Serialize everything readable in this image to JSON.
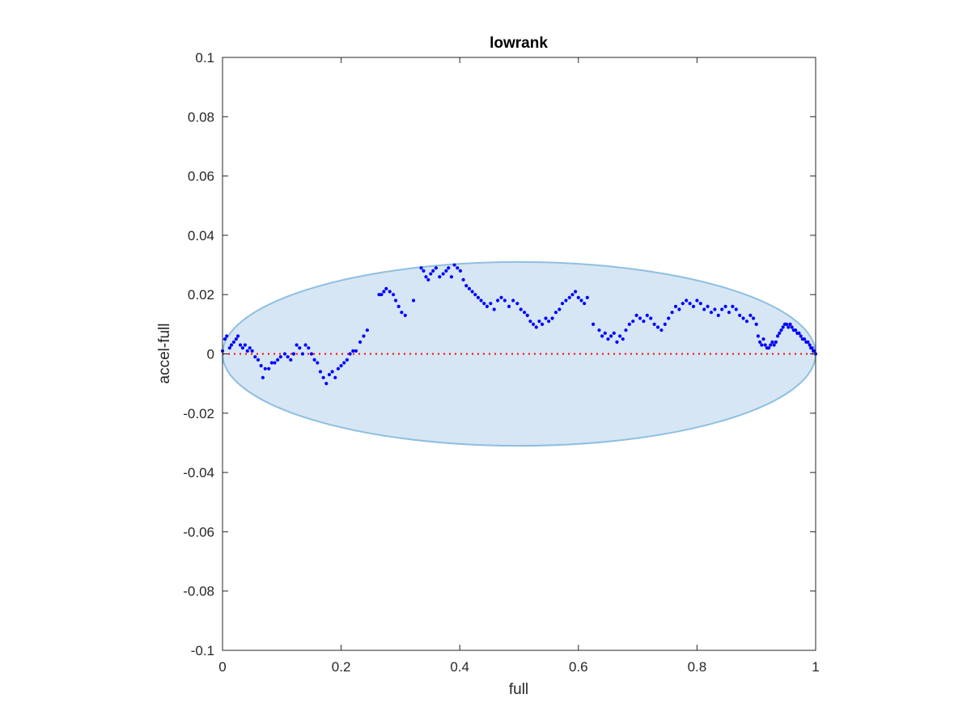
{
  "chart_data": {
    "type": "scatter",
    "title": "lowrank",
    "xlabel": "full",
    "ylabel": "accel-full",
    "xlim": [
      0,
      1
    ],
    "ylim": [
      -0.1,
      0.1
    ],
    "xticks": [
      "0",
      "0.2",
      "0.4",
      "0.6",
      "0.8",
      "1"
    ],
    "yticks": [
      "-0.1",
      "-0.08",
      "-0.06",
      "-0.04",
      "-0.02",
      "0",
      "0.02",
      "0.04",
      "0.06",
      "0.08",
      "0.1"
    ],
    "grid": false,
    "reference_line": {
      "y": 0,
      "style": "dotted",
      "color": "#ff0000"
    },
    "ellipse": {
      "center": [
        0.5,
        0
      ],
      "semi_axis_x": 0.5,
      "semi_axis_y": 0.031,
      "fill": "#d6e6f4",
      "stroke": "#8fbfe0"
    },
    "marker_color": "#0000ff",
    "points": [
      [
        0.0,
        0.001
      ],
      [
        0.004,
        0.005
      ],
      [
        0.007,
        0.006
      ],
      [
        0.012,
        0.002
      ],
      [
        0.015,
        0.003
      ],
      [
        0.019,
        0.004
      ],
      [
        0.023,
        0.005
      ],
      [
        0.026,
        0.006
      ],
      [
        0.03,
        0.003
      ],
      [
        0.034,
        0.002
      ],
      [
        0.038,
        0.003
      ],
      [
        0.042,
        0.001
      ],
      [
        0.046,
        0.002
      ],
      [
        0.05,
        0.001
      ],
      [
        0.055,
        -0.001
      ],
      [
        0.06,
        -0.002
      ],
      [
        0.065,
        -0.004
      ],
      [
        0.068,
        -0.008
      ],
      [
        0.072,
        -0.005
      ],
      [
        0.078,
        -0.005
      ],
      [
        0.083,
        -0.003
      ],
      [
        0.088,
        -0.003
      ],
      [
        0.093,
        -0.002
      ],
      [
        0.098,
        -0.001
      ],
      [
        0.105,
        0.0
      ],
      [
        0.11,
        -0.001
      ],
      [
        0.115,
        -0.002
      ],
      [
        0.12,
        0.0
      ],
      [
        0.125,
        0.003
      ],
      [
        0.13,
        0.002
      ],
      [
        0.135,
        0.0
      ],
      [
        0.14,
        0.003
      ],
      [
        0.145,
        0.002
      ],
      [
        0.15,
        0.0
      ],
      [
        0.155,
        -0.002
      ],
      [
        0.16,
        -0.003
      ],
      [
        0.165,
        -0.006
      ],
      [
        0.17,
        -0.008
      ],
      [
        0.175,
        -0.01
      ],
      [
        0.18,
        -0.007
      ],
      [
        0.185,
        -0.006
      ],
      [
        0.19,
        -0.008
      ],
      [
        0.195,
        -0.005
      ],
      [
        0.2,
        -0.004
      ],
      [
        0.205,
        -0.003
      ],
      [
        0.21,
        -0.002
      ],
      [
        0.215,
        0.0
      ],
      [
        0.22,
        0.001
      ],
      [
        0.225,
        0.001
      ],
      [
        0.232,
        0.004
      ],
      [
        0.238,
        0.006
      ],
      [
        0.244,
        0.008
      ],
      [
        0.264,
        0.02
      ],
      [
        0.268,
        0.02
      ],
      [
        0.272,
        0.021
      ],
      [
        0.276,
        0.022
      ],
      [
        0.282,
        0.021
      ],
      [
        0.288,
        0.02
      ],
      [
        0.292,
        0.018
      ],
      [
        0.297,
        0.016
      ],
      [
        0.302,
        0.014
      ],
      [
        0.308,
        0.013
      ],
      [
        0.322,
        0.018
      ],
      [
        0.335,
        0.029
      ],
      [
        0.339,
        0.028
      ],
      [
        0.343,
        0.026
      ],
      [
        0.347,
        0.025
      ],
      [
        0.351,
        0.027
      ],
      [
        0.355,
        0.028
      ],
      [
        0.36,
        0.029
      ],
      [
        0.366,
        0.026
      ],
      [
        0.372,
        0.027
      ],
      [
        0.377,
        0.028
      ],
      [
        0.381,
        0.029
      ],
      [
        0.386,
        0.026
      ],
      [
        0.391,
        0.03
      ],
      [
        0.396,
        0.029
      ],
      [
        0.401,
        0.028
      ],
      [
        0.406,
        0.025
      ],
      [
        0.411,
        0.023
      ],
      [
        0.416,
        0.022
      ],
      [
        0.421,
        0.021
      ],
      [
        0.426,
        0.02
      ],
      [
        0.431,
        0.019
      ],
      [
        0.436,
        0.018
      ],
      [
        0.441,
        0.017
      ],
      [
        0.446,
        0.016
      ],
      [
        0.452,
        0.017
      ],
      [
        0.458,
        0.015
      ],
      [
        0.464,
        0.018
      ],
      [
        0.47,
        0.019
      ],
      [
        0.476,
        0.018
      ],
      [
        0.483,
        0.016
      ],
      [
        0.49,
        0.018
      ],
      [
        0.497,
        0.017
      ],
      [
        0.503,
        0.015
      ],
      [
        0.509,
        0.014
      ],
      [
        0.514,
        0.013
      ],
      [
        0.519,
        0.011
      ],
      [
        0.524,
        0.01
      ],
      [
        0.529,
        0.009
      ],
      [
        0.534,
        0.011
      ],
      [
        0.539,
        0.01
      ],
      [
        0.545,
        0.012
      ],
      [
        0.55,
        0.011
      ],
      [
        0.556,
        0.012
      ],
      [
        0.562,
        0.014
      ],
      [
        0.568,
        0.015
      ],
      [
        0.573,
        0.017
      ],
      [
        0.579,
        0.018
      ],
      [
        0.585,
        0.019
      ],
      [
        0.59,
        0.02
      ],
      [
        0.595,
        0.021
      ],
      [
        0.6,
        0.019
      ],
      [
        0.605,
        0.018
      ],
      [
        0.61,
        0.017
      ],
      [
        0.615,
        0.019
      ],
      [
        0.625,
        0.01
      ],
      [
        0.635,
        0.008
      ],
      [
        0.64,
        0.006
      ],
      [
        0.645,
        0.007
      ],
      [
        0.65,
        0.005
      ],
      [
        0.655,
        0.006
      ],
      [
        0.66,
        0.007
      ],
      [
        0.665,
        0.004
      ],
      [
        0.67,
        0.006
      ],
      [
        0.675,
        0.005
      ],
      [
        0.68,
        0.008
      ],
      [
        0.686,
        0.01
      ],
      [
        0.692,
        0.011
      ],
      [
        0.698,
        0.013
      ],
      [
        0.704,
        0.012
      ],
      [
        0.71,
        0.011
      ],
      [
        0.716,
        0.013
      ],
      [
        0.722,
        0.012
      ],
      [
        0.728,
        0.01
      ],
      [
        0.734,
        0.009
      ],
      [
        0.74,
        0.008
      ],
      [
        0.746,
        0.01
      ],
      [
        0.752,
        0.012
      ],
      [
        0.758,
        0.014
      ],
      [
        0.764,
        0.016
      ],
      [
        0.77,
        0.015
      ],
      [
        0.776,
        0.017
      ],
      [
        0.782,
        0.018
      ],
      [
        0.788,
        0.017
      ],
      [
        0.794,
        0.016
      ],
      [
        0.8,
        0.018
      ],
      [
        0.806,
        0.017
      ],
      [
        0.812,
        0.015
      ],
      [
        0.818,
        0.016
      ],
      [
        0.824,
        0.014
      ],
      [
        0.83,
        0.015
      ],
      [
        0.836,
        0.013
      ],
      [
        0.842,
        0.015
      ],
      [
        0.848,
        0.016
      ],
      [
        0.854,
        0.014
      ],
      [
        0.86,
        0.016
      ],
      [
        0.866,
        0.015
      ],
      [
        0.872,
        0.013
      ],
      [
        0.878,
        0.012
      ],
      [
        0.884,
        0.011
      ],
      [
        0.89,
        0.013
      ],
      [
        0.895,
        0.012
      ],
      [
        0.9,
        0.01
      ],
      [
        0.903,
        0.006
      ],
      [
        0.906,
        0.004
      ],
      [
        0.909,
        0.003
      ],
      [
        0.912,
        0.005
      ],
      [
        0.915,
        0.003
      ],
      [
        0.918,
        0.002
      ],
      [
        0.921,
        0.002
      ],
      [
        0.924,
        0.003
      ],
      [
        0.927,
        0.004
      ],
      [
        0.93,
        0.003
      ],
      [
        0.933,
        0.004
      ],
      [
        0.936,
        0.006
      ],
      [
        0.939,
        0.007
      ],
      [
        0.942,
        0.008
      ],
      [
        0.945,
        0.009
      ],
      [
        0.948,
        0.01
      ],
      [
        0.951,
        0.01
      ],
      [
        0.954,
        0.009
      ],
      [
        0.957,
        0.01
      ],
      [
        0.96,
        0.009
      ],
      [
        0.963,
        0.008
      ],
      [
        0.966,
        0.008
      ],
      [
        0.969,
        0.007
      ],
      [
        0.972,
        0.007
      ],
      [
        0.975,
        0.006
      ],
      [
        0.978,
        0.005
      ],
      [
        0.981,
        0.005
      ],
      [
        0.984,
        0.004
      ],
      [
        0.987,
        0.004
      ],
      [
        0.99,
        0.003
      ],
      [
        0.992,
        0.002
      ],
      [
        0.994,
        0.002
      ],
      [
        0.996,
        0.001
      ],
      [
        0.998,
        0.001
      ],
      [
        1.0,
        0.0
      ]
    ]
  }
}
